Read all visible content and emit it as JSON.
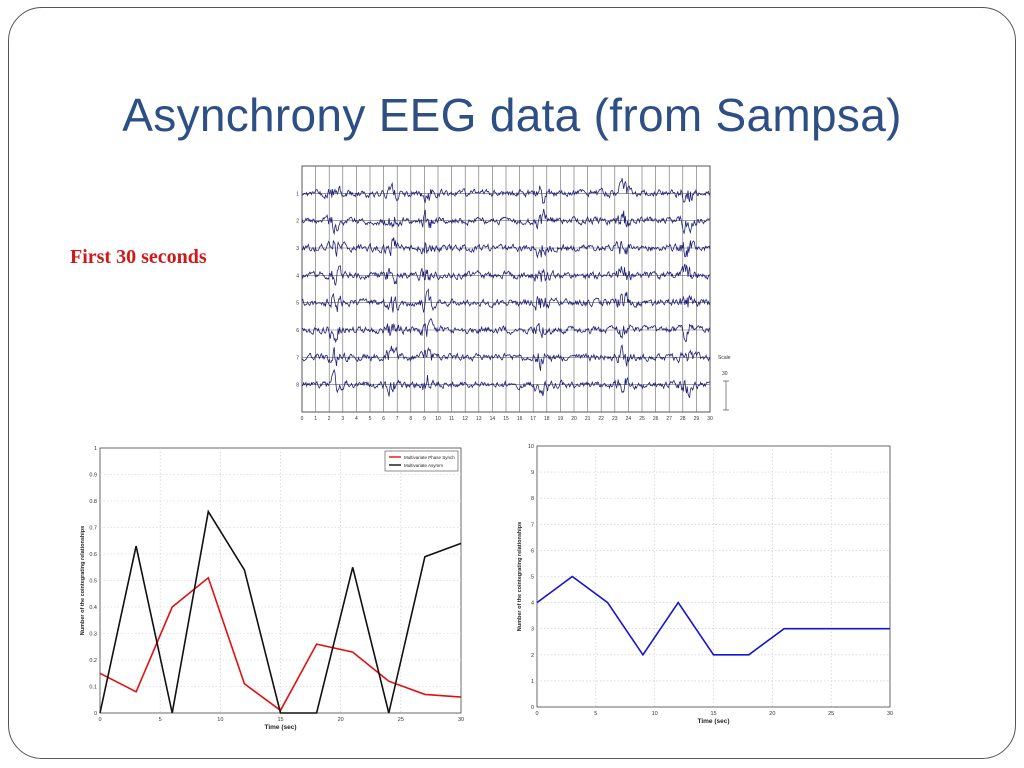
{
  "slide": {
    "title": "Asynchrony EEG data (from Sampsa)",
    "caption": "First 30 seconds"
  },
  "chart_data": [
    {
      "type": "line",
      "name": "eeg-traces",
      "channels": [
        "1",
        "2",
        "3",
        "4",
        "5",
        "6",
        "7",
        "8"
      ],
      "x_ticks": [
        "0",
        "1",
        "2",
        "3",
        "4",
        "5",
        "6",
        "7",
        "8",
        "9",
        "10",
        "11",
        "12",
        "13",
        "14",
        "15",
        "16",
        "17",
        "18",
        "19",
        "20",
        "21",
        "22",
        "23",
        "24",
        "25",
        "26",
        "27",
        "28",
        "29",
        "30"
      ],
      "xlim": [
        0,
        30
      ],
      "grid": true,
      "scale_label": "Scale",
      "scale_value": "30",
      "color": "#1f1f7a"
    },
    {
      "type": "line",
      "xlabel": "Time (sec)",
      "ylabel": "Number of the cointegrating relationships",
      "xlim": [
        0,
        30
      ],
      "ylim": [
        0,
        1
      ],
      "x_ticks": [
        0,
        5,
        10,
        15,
        20,
        25,
        30
      ],
      "y_ticks": [
        0,
        0.1,
        0.2,
        0.3,
        0.4,
        0.5,
        0.6,
        0.7,
        0.8,
        0.9,
        1
      ],
      "grid": true,
      "legend": "top-right",
      "x": [
        0,
        3,
        6,
        9,
        12,
        15,
        18,
        21,
        24,
        27,
        30
      ],
      "series": [
        {
          "name": "Multivariate Phase Synch",
          "color": "#e01010",
          "values": [
            0.15,
            0.08,
            0.4,
            0.51,
            0.11,
            0.01,
            0.26,
            0.23,
            0.12,
            0.07,
            0.06
          ]
        },
        {
          "name": "Multivariate Asymm",
          "color": "#111111",
          "values": [
            0.0,
            0.63,
            0.0,
            0.76,
            0.54,
            0.0,
            0.0,
            0.55,
            0.0,
            0.59,
            0.64
          ]
        }
      ]
    },
    {
      "type": "line",
      "xlabel": "Time (sec)",
      "ylabel": "Number of the cointegrating relationships",
      "xlim": [
        0,
        30
      ],
      "ylim": [
        0,
        10
      ],
      "x_ticks": [
        0,
        5,
        10,
        15,
        20,
        25,
        30
      ],
      "y_ticks": [
        0,
        1,
        2,
        3,
        4,
        5,
        6,
        7,
        8,
        9,
        10
      ],
      "grid": true,
      "x": [
        0,
        3,
        6,
        9,
        12,
        15,
        18,
        21,
        24,
        27,
        30
      ],
      "series": [
        {
          "color": "#1414d4",
          "values": [
            4,
            5,
            4,
            2,
            4,
            2,
            2,
            3,
            3,
            3,
            3
          ]
        }
      ]
    }
  ]
}
